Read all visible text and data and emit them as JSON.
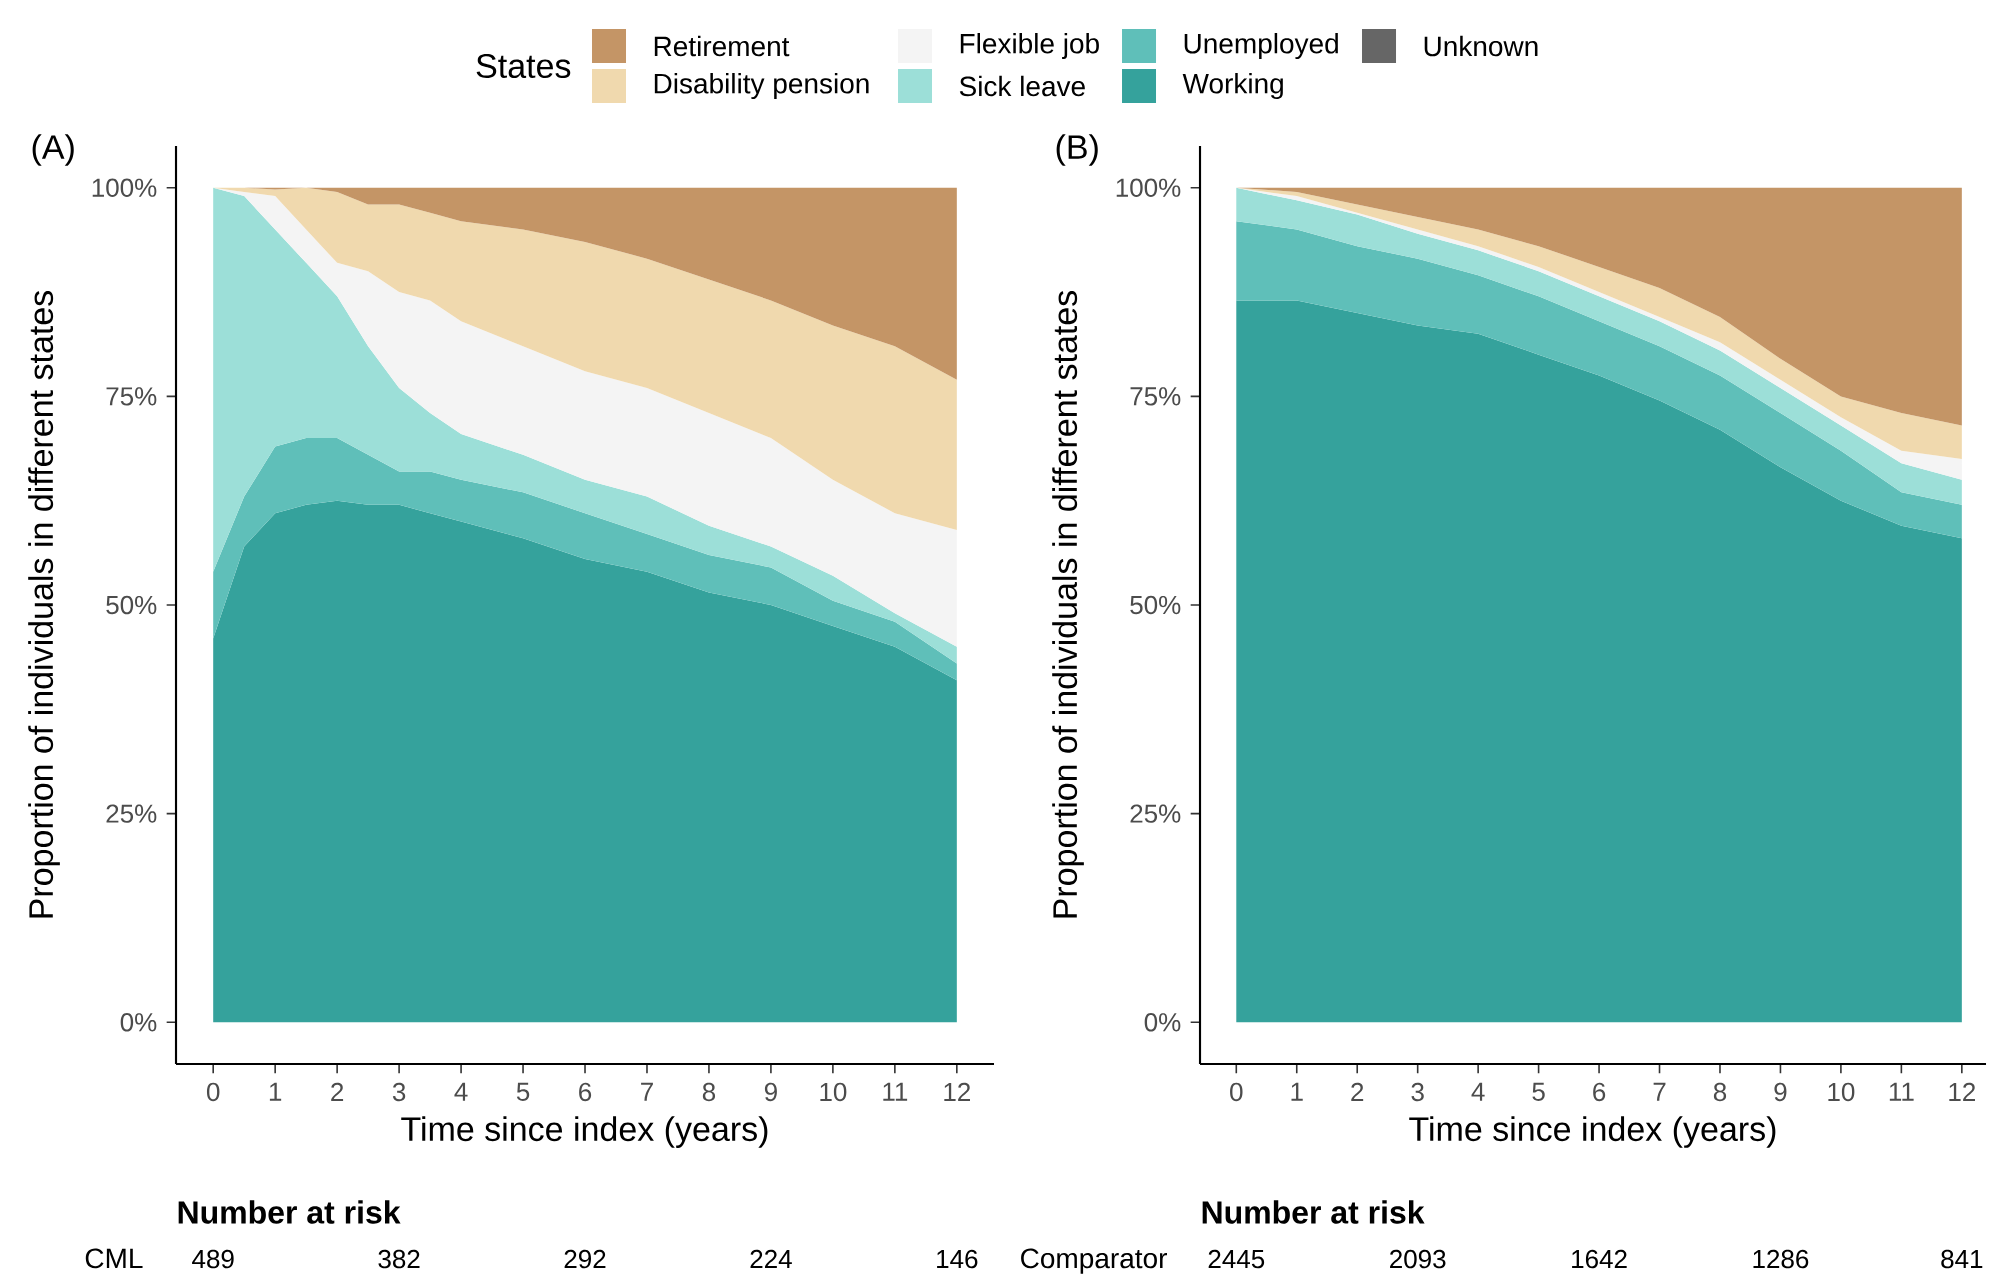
{
  "chart_data": [
    {
      "type": "area",
      "title": "(A)",
      "xlabel": "Time since index (years)",
      "ylabel": "Proportion of individuals in different states",
      "legend_title": "States",
      "legend": "top",
      "stacked": true,
      "x": [
        0,
        0.5,
        1,
        1.5,
        2,
        2.5,
        3,
        3.5,
        4,
        5,
        6,
        7,
        8,
        9,
        10,
        11,
        12
      ],
      "series": [
        {
          "name": "Unknown",
          "color": "#666666",
          "values": [
            null,
            null,
            null,
            null,
            null,
            null,
            null,
            null,
            null,
            null,
            null,
            null,
            null,
            null,
            null,
            null,
            null
          ]
        },
        {
          "name": "Working",
          "color": "#35a29c",
          "values": [
            46,
            57,
            61,
            62,
            62.5,
            62,
            62,
            61,
            60,
            58,
            55.5,
            54,
            51.5,
            50,
            47.5,
            45,
            41
          ]
        },
        {
          "name": "Unemployed",
          "color": "#5fbfb9",
          "values": [
            8,
            6,
            8,
            8,
            7.5,
            6,
            4,
            5,
            5,
            5.5,
            5.5,
            4.5,
            4.5,
            4.5,
            3,
            3,
            2
          ]
        },
        {
          "name": "Sick leave",
          "color": "#9cdfd8",
          "values": [
            46,
            36,
            26,
            21,
            17,
            13,
            10,
            7,
            5.5,
            4.5,
            4,
            4.5,
            3.5,
            2.5,
            3,
            1,
            2
          ]
        },
        {
          "name": "Flexible job",
          "color": "#f4f4f4",
          "values": [
            0,
            0.5,
            4,
            4,
            4,
            9,
            11.5,
            13.5,
            13.5,
            13,
            13,
            13,
            13.5,
            13,
            11.5,
            12,
            14
          ]
        },
        {
          "name": "Disability pension",
          "color": "#f0d9ae",
          "values": [
            0,
            0.5,
            0.8,
            5,
            8.5,
            8,
            10.5,
            10.5,
            12,
            14,
            15.5,
            15.5,
            16,
            16.5,
            18.5,
            20,
            18
          ]
        },
        {
          "name": "Retirement",
          "color": "#c49566",
          "values": [
            0,
            0,
            0.2,
            0,
            0.5,
            2,
            2,
            3,
            4,
            5,
            6.5,
            8.5,
            11,
            13.5,
            16.5,
            19,
            23
          ]
        }
      ],
      "xlim": [
        -0.6,
        12.6
      ],
      "xticks": [
        0,
        1,
        2,
        3,
        4,
        5,
        6,
        7,
        8,
        9,
        10,
        11,
        12
      ],
      "ylim": [
        -5,
        105
      ],
      "yticks": [
        {
          "value": 0,
          "label": "0%"
        },
        {
          "value": 25,
          "label": "25%"
        },
        {
          "value": 50,
          "label": "50%"
        },
        {
          "value": 75,
          "label": "75%"
        },
        {
          "value": 100,
          "label": "100%"
        }
      ],
      "annotations": [
        "Number at risk",
        "CML",
        "489",
        "382",
        "292",
        "224",
        "146"
      ]
    },
    {
      "type": "area",
      "title": "(B)",
      "xlabel": "Time since index (years)",
      "ylabel": "Proportion of individuals in different states",
      "stacked": true,
      "x": [
        0,
        1,
        2,
        3,
        4,
        5,
        6,
        7,
        8,
        9,
        10,
        11,
        12
      ],
      "series": [
        {
          "color": "#35a29c",
          "values": [
            86.5,
            86.5,
            85,
            83.5,
            82.5,
            80,
            77.5,
            74.5,
            71,
            66.5,
            62.5,
            59.5,
            58
          ]
        },
        {
          "color": "#5fbfb9",
          "values": [
            9.5,
            8.5,
            8,
            8,
            7,
            7,
            6.5,
            6.5,
            6.5,
            6.5,
            6,
            4,
            4
          ]
        },
        {
          "color": "#9cdfd8",
          "values": [
            4,
            3.5,
            3.8,
            3,
            3,
            3,
            3,
            3,
            3,
            3,
            3,
            3.5,
            3
          ]
        },
        {
          "color": "#f4f4f4",
          "values": [
            0,
            0.5,
            0.2,
            0.5,
            0.5,
            0.5,
            0.5,
            0.5,
            1,
            1,
            1,
            1.5,
            2.5
          ]
        },
        {
          "color": "#f0d9ae",
          "values": [
            0,
            0.5,
            1,
            1.5,
            2,
            2.5,
            3,
            3.5,
            3,
            2.5,
            2.5,
            4.5,
            4
          ]
        },
        {
          "color": "#c49566",
          "values": [
            0,
            0.5,
            2,
            3.5,
            5,
            7,
            9.5,
            12,
            15.5,
            20.5,
            25,
            27,
            28.5
          ]
        }
      ],
      "xlim": [
        -0.6,
        12.4
      ],
      "xticks": [
        0,
        1,
        2,
        3,
        4,
        5,
        6,
        7,
        8,
        9,
        10,
        11,
        12
      ],
      "ylim": [
        -5,
        105
      ],
      "yticks": [
        {
          "value": 0,
          "label": "0%"
        },
        {
          "value": 25,
          "label": "25%"
        },
        {
          "value": 50,
          "label": "50%"
        },
        {
          "value": 75,
          "label": "75%"
        },
        {
          "value": 100,
          "label": "100%"
        }
      ],
      "annotations": [
        "Number at risk",
        "Comparator",
        "2445",
        "2093",
        "1642",
        "1286",
        "841"
      ]
    }
  ]
}
